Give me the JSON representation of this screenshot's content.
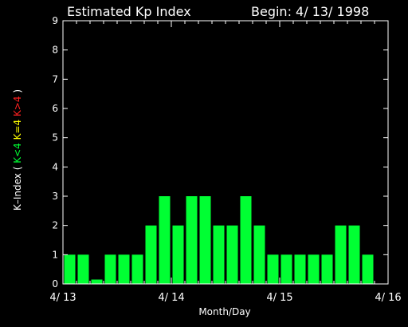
{
  "header": {
    "title": "Estimated Kp Index",
    "begin": "Begin: 4/ 13/ 1998"
  },
  "colors": {
    "background": "#000000",
    "axes": "#ffffff",
    "bar": "#00ff33",
    "k_less_4": "#00ff33",
    "k_equal_4": "#ffff00",
    "k_greater_4": "#ff2020"
  },
  "chart_data": {
    "type": "bar",
    "title": "Estimated Kp Index",
    "xlabel": "Month/Day",
    "ylabel_parts": [
      {
        "text": "K–Index (",
        "color": "#ffffff"
      },
      {
        "text": "K<4",
        "color": "#00ff33"
      },
      {
        "text": "K=4",
        "color": "#ffff00"
      },
      {
        "text": "K>4",
        "color": "#ff2020"
      },
      {
        "text": ")",
        "color": "#ffffff"
      }
    ],
    "ylim": [
      0,
      9
    ],
    "yticks": [
      "0",
      "1",
      "2",
      "3",
      "4",
      "5",
      "6",
      "7",
      "8",
      "9"
    ],
    "xlim": [
      0,
      24
    ],
    "xticks": [
      {
        "pos": 0,
        "label": "4/ 13"
      },
      {
        "pos": 8,
        "label": "4/ 14"
      },
      {
        "pos": 16,
        "label": "4/ 15"
      },
      {
        "pos": 24,
        "label": "4/ 16"
      }
    ],
    "interval_hours": 3,
    "values": [
      1,
      1,
      0.15,
      1,
      1,
      1,
      2,
      3,
      2,
      3,
      3,
      2,
      2,
      3,
      2,
      1,
      1,
      1,
      1,
      1,
      2,
      2,
      1,
      0
    ]
  }
}
